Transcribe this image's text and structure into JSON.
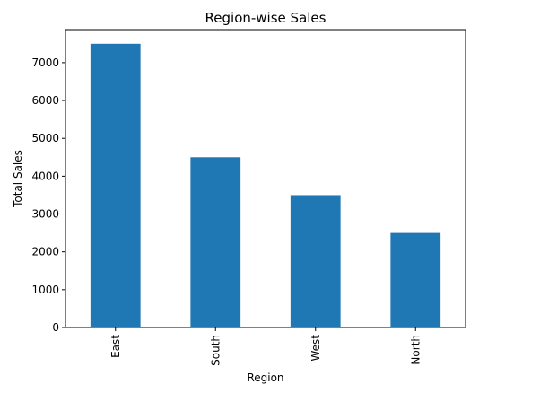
{
  "chart_data": {
    "type": "bar",
    "title": "Region-wise Sales",
    "xlabel": "Region",
    "ylabel": "Total Sales",
    "categories": [
      "East",
      "South",
      "West",
      "North"
    ],
    "values": [
      7500,
      4500,
      3500,
      2500
    ],
    "ylim": [
      0,
      7875
    ],
    "yticks": [
      0,
      1000,
      2000,
      3000,
      4000,
      5000,
      6000,
      7000
    ],
    "grid": false,
    "colors": {
      "bar": "#1f77b4"
    }
  }
}
